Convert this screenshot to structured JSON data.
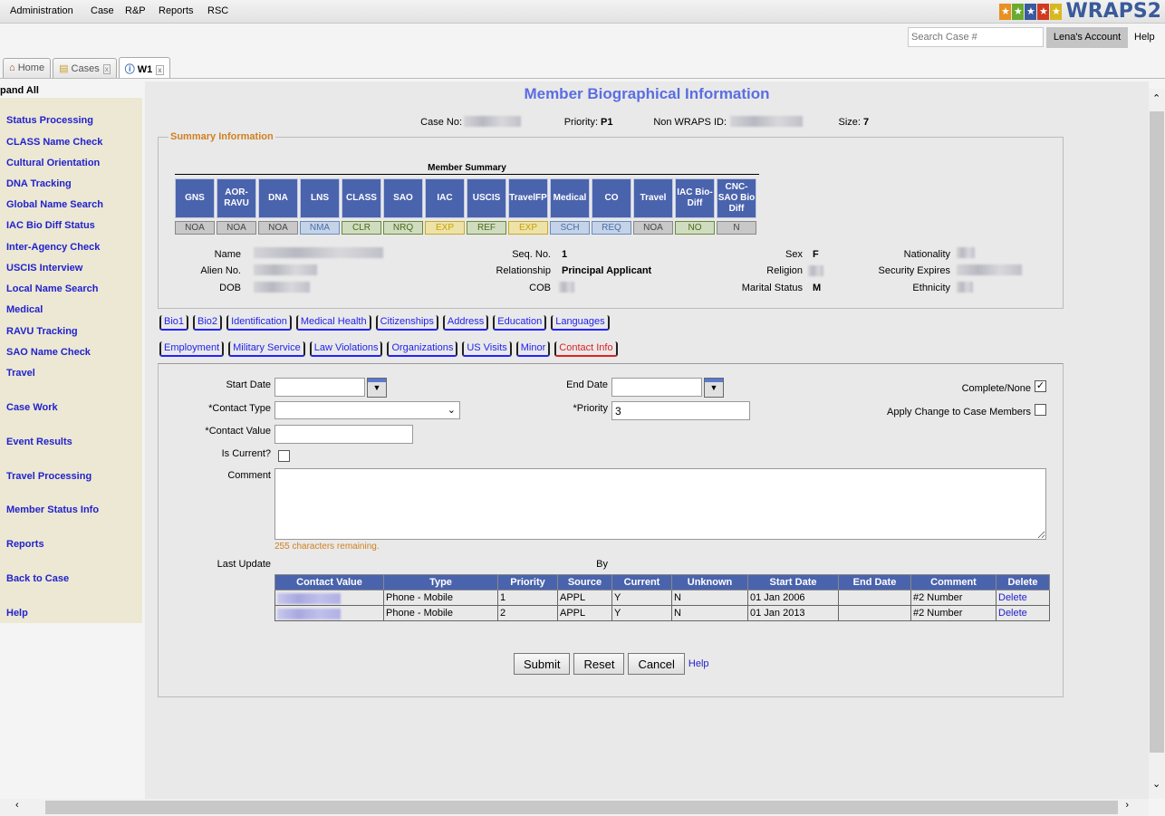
{
  "menu": [
    "Administration",
    "Case",
    "R&P",
    "Reports",
    "RSC"
  ],
  "logo": {
    "text": "WRAPS2",
    "colors": [
      "#e89020",
      "#6aaa30",
      "#3a5aa0",
      "#d03a20",
      "#d8b820"
    ]
  },
  "header": {
    "search_placeholder": "Search Case #",
    "account": "Lena's Account",
    "help": "Help"
  },
  "tabs": [
    {
      "label": "Home",
      "icon": "home-icon"
    },
    {
      "label": "Cases",
      "icon": "folders-icon",
      "closable": true
    },
    {
      "label": "W1",
      "icon": "info-icon",
      "closable": true,
      "active": true
    }
  ],
  "sidebar": {
    "expand_all": "pand All",
    "items": [
      "Status Processing",
      "CLASS Name Check",
      "Cultural Orientation",
      "DNA Tracking",
      "Global Name Search",
      "IAC Bio Diff Status",
      "Inter-Agency Check",
      "USCIS Interview",
      "Local Name Search",
      "Medical",
      "RAVU Tracking",
      "SAO Name Check",
      "Travel"
    ],
    "sections": [
      "Case Work",
      "Event Results",
      "Travel Processing",
      "Member Status Info",
      "Reports",
      "Back to Case",
      "Help"
    ]
  },
  "page": {
    "title": "Member Biographical Information",
    "case_no_label": "Case No:",
    "priority_label": "Priority:",
    "priority": "P1",
    "non_wraps_label": "Non WRAPS ID:",
    "size_label": "Size:",
    "size": "7"
  },
  "summary": {
    "legend": "Summary Information",
    "member_summary": "Member Summary",
    "columns": [
      {
        "h": "GNS",
        "s": "NOA",
        "c": "gray"
      },
      {
        "h": "AOR-RAVU",
        "s": "NOA",
        "c": "gray"
      },
      {
        "h": "DNA",
        "s": "NOA",
        "c": "gray"
      },
      {
        "h": "LNS",
        "s": "NMA",
        "c": "blue"
      },
      {
        "h": "CLASS",
        "s": "CLR",
        "c": "green"
      },
      {
        "h": "SAO",
        "s": "NRQ",
        "c": "green"
      },
      {
        "h": "IAC",
        "s": "EXP",
        "c": "yellow"
      },
      {
        "h": "USCIS",
        "s": "REF",
        "c": "green"
      },
      {
        "h": "TravelFP",
        "s": "EXP",
        "c": "yellow"
      },
      {
        "h": "Medical",
        "s": "SCH",
        "c": "blue"
      },
      {
        "h": "CO",
        "s": "REQ",
        "c": "blue"
      },
      {
        "h": "Travel",
        "s": "NOA",
        "c": "gray"
      },
      {
        "h": "IAC Bio-Diff",
        "s": "NO",
        "c": "green"
      },
      {
        "h": "CNC-SAO Bio Diff",
        "s": "N",
        "c": "gray"
      }
    ],
    "fields": {
      "name": "Name",
      "alien_no": "Alien No.",
      "dob": "DOB",
      "seq_no_label": "Seq. No.",
      "seq_no": "1",
      "relationship_label": "Relationship",
      "relationship": "Principal Applicant",
      "cob": "COB",
      "sex_label": "Sex",
      "sex": "F",
      "religion": "Religion",
      "marital_label": "Marital Status",
      "marital": "M",
      "nationality": "Nationality",
      "security_expires": "Security Expires",
      "ethnicity": "Ethnicity"
    }
  },
  "subtabs_row1": [
    "Bio1",
    "Bio2",
    "Identification",
    "Medical Health",
    "Citizenships",
    "Address",
    "Education",
    "Languages"
  ],
  "subtabs_row2": [
    "Employment",
    "Military Service",
    "Law Violations",
    "Organizations",
    "US Visits",
    "Minor",
    "Contact Info"
  ],
  "form": {
    "start_date": "Start Date",
    "end_date": "End Date",
    "complete_none": "Complete/None",
    "complete_checked": true,
    "contact_type": "*Contact Type",
    "priority_label": "*Priority",
    "priority_value": "3",
    "apply_change": "Apply Change to Case Members",
    "contact_value": "*Contact Value",
    "is_current": "Is Current?",
    "comment": "Comment",
    "remaining": "255 characters remaining.",
    "last_update": "Last Update",
    "by": "By"
  },
  "grid": {
    "headers": [
      "Contact Value",
      "Type",
      "Priority",
      "Source",
      "Current",
      "Unknown",
      "Start Date",
      "End Date",
      "Comment",
      "Delete"
    ],
    "rows": [
      [
        "",
        "Phone - Mobile",
        "1",
        "APPL",
        "Y",
        "N",
        "01 Jan 2006",
        "",
        "#2 Number",
        "Delete"
      ],
      [
        "",
        "Phone - Mobile",
        "2",
        "APPL",
        "Y",
        "N",
        "01 Jan 2013",
        "",
        "#2 Number",
        "Delete"
      ]
    ]
  },
  "buttons": {
    "submit": "Submit",
    "reset": "Reset",
    "cancel": "Cancel",
    "help": "Help"
  }
}
